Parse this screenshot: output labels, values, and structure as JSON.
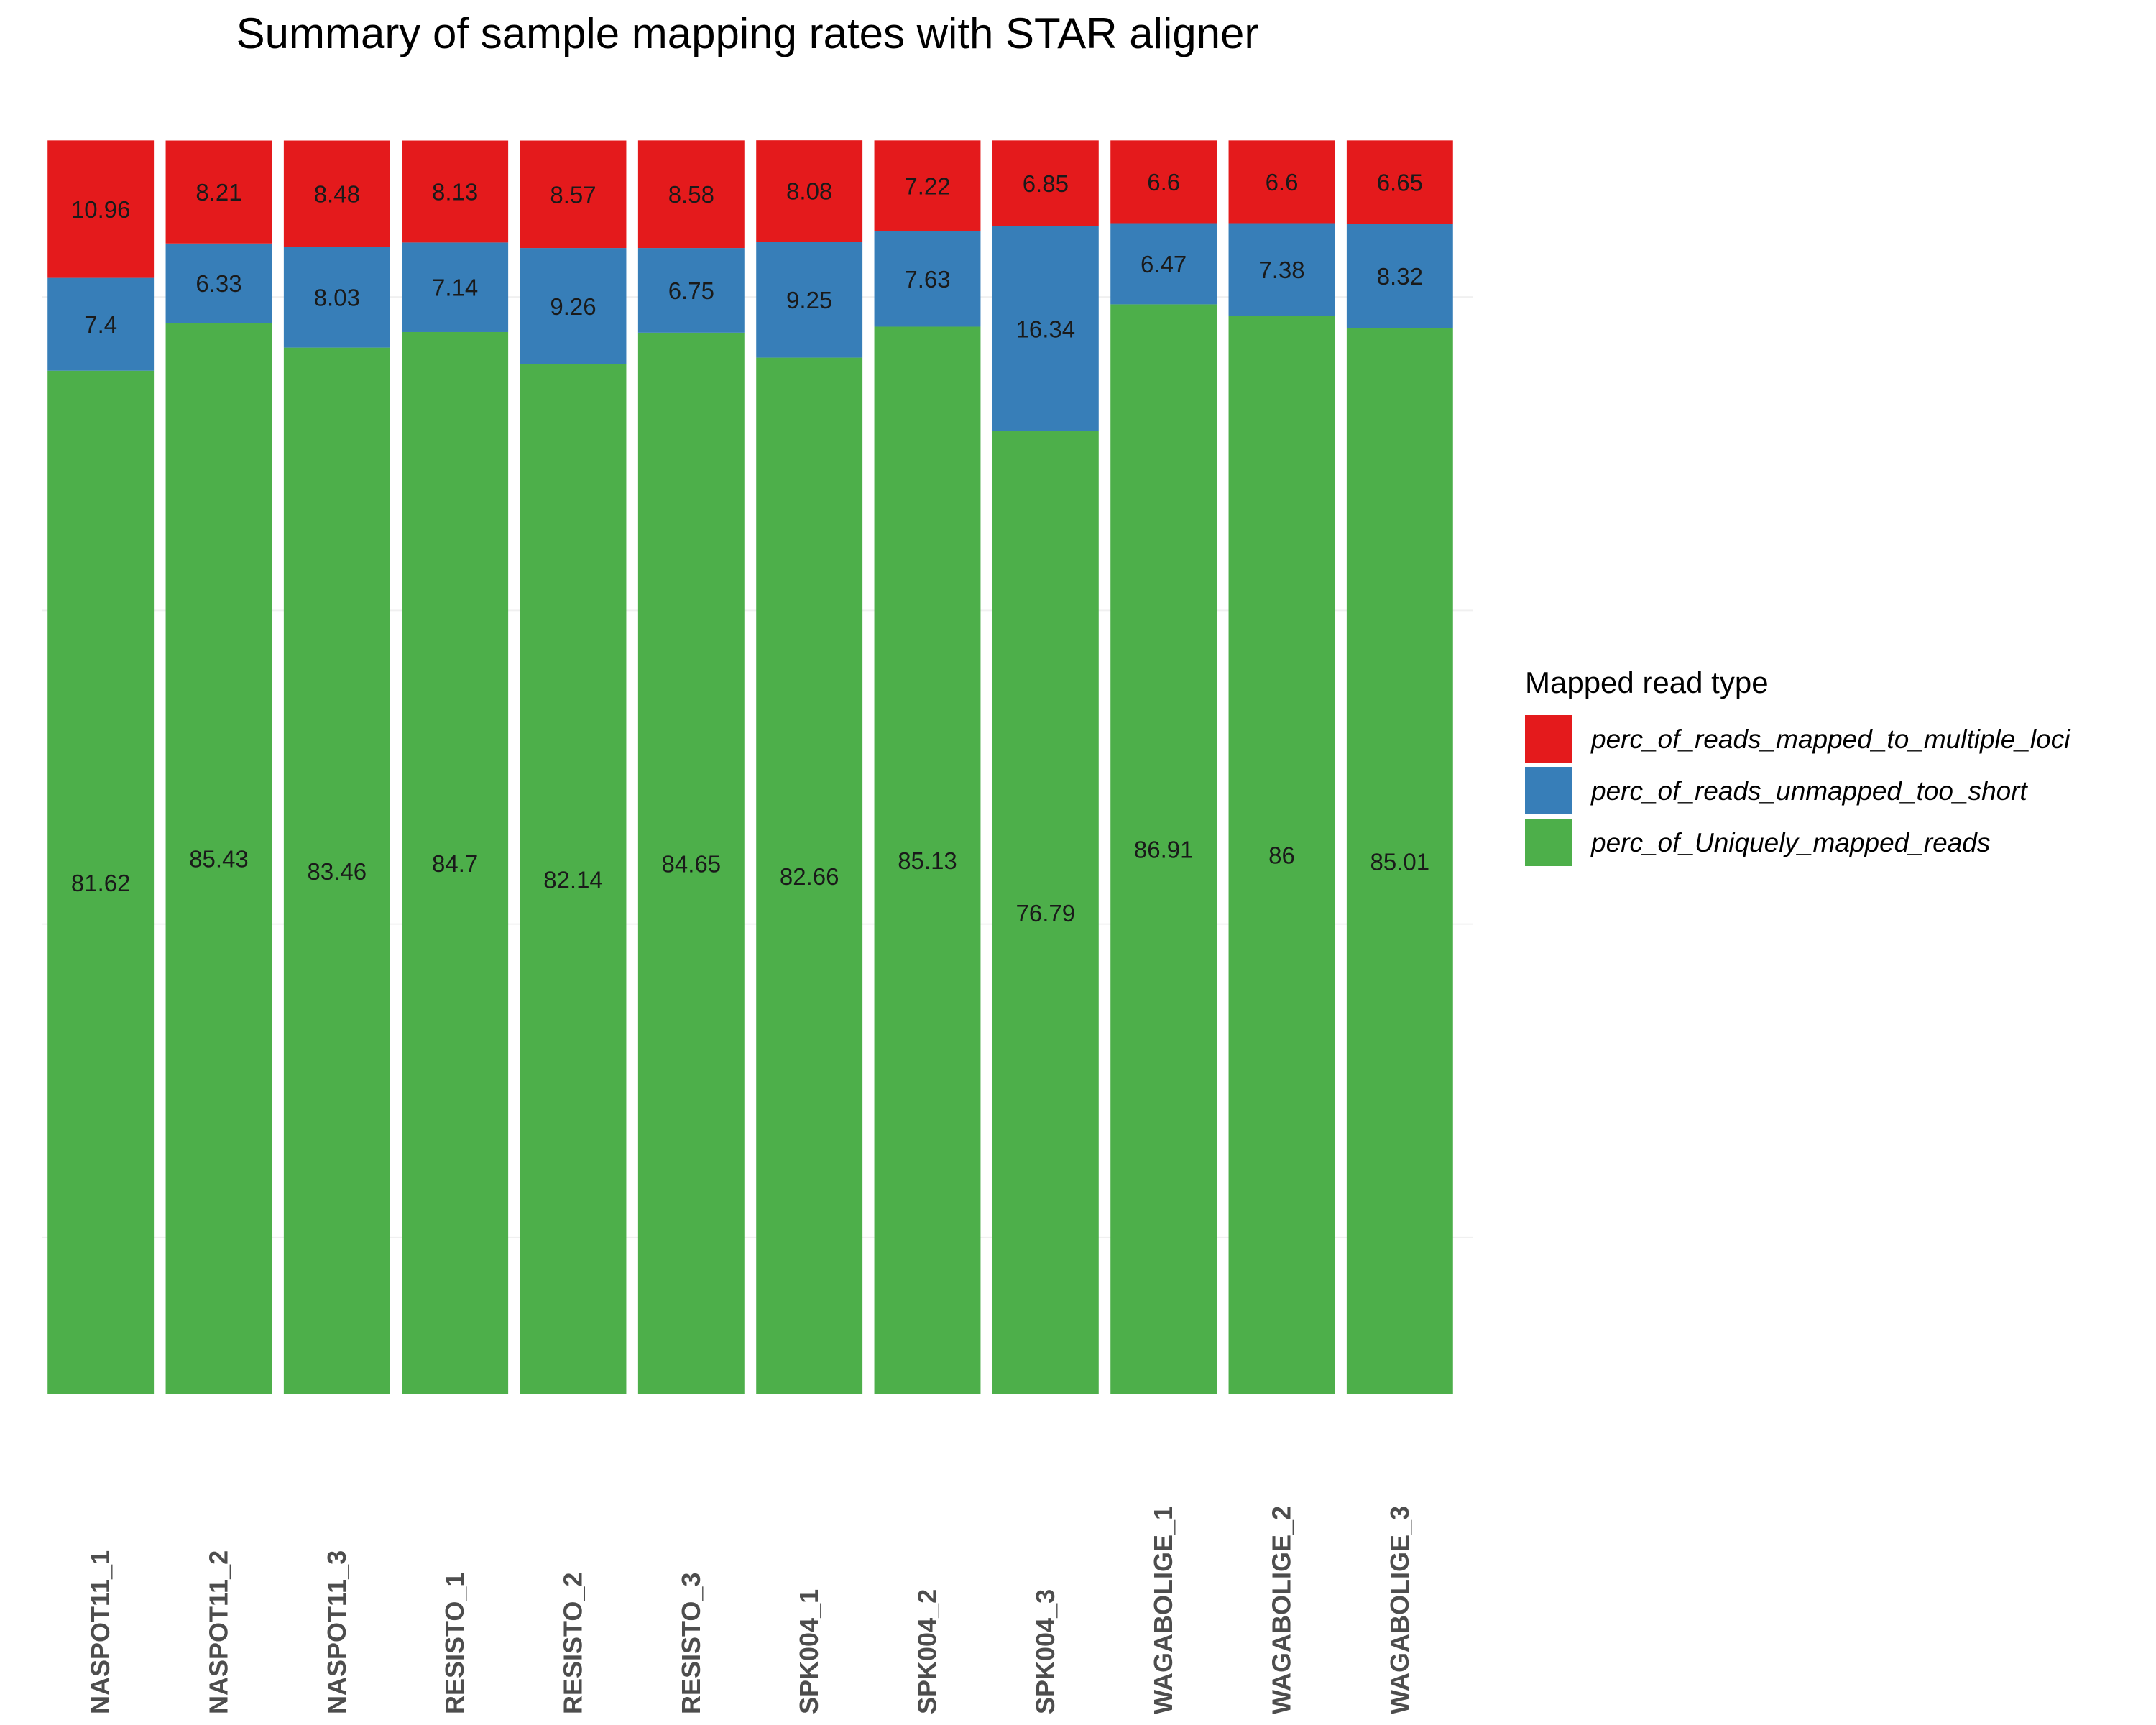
{
  "chart_data": {
    "type": "bar",
    "stacked": true,
    "title": "Summary of sample mapping rates with STAR aligner",
    "xlabel": "",
    "ylabel": "",
    "ylim": [
      0,
      100
    ],
    "grid": true,
    "legend": {
      "title": "Mapped read type",
      "position": "right"
    },
    "categories": [
      "NASPOT11_1",
      "NASPOT11_2",
      "NASPOT11_3",
      "RESISTO_1",
      "RESISTO_2",
      "RESISTO_3",
      "SPK004_1",
      "SPK004_2",
      "SPK004_3",
      "WAGABOLIGE_1",
      "WAGABOLIGE_2",
      "WAGABOLIGE_3"
    ],
    "series": [
      {
        "name": "perc_of_Uniquely_mapped_reads",
        "color": "#4daf4a",
        "values": [
          81.62,
          85.43,
          83.46,
          84.7,
          82.14,
          84.65,
          82.66,
          85.13,
          76.79,
          86.91,
          86,
          85.01
        ]
      },
      {
        "name": "perc_of_reads_unmapped_too_short",
        "color": "#377eb8",
        "values": [
          7.4,
          6.33,
          8.03,
          7.14,
          9.26,
          6.75,
          9.25,
          7.63,
          16.34,
          6.47,
          7.38,
          8.32
        ]
      },
      {
        "name": "perc_of_reads_mapped_to_multiple_loci",
        "color": "#e41a1c",
        "values": [
          10.96,
          8.21,
          8.48,
          8.13,
          8.57,
          8.58,
          8.08,
          7.22,
          6.85,
          6.6,
          6.6,
          6.65
        ]
      }
    ],
    "legend_order": [
      "perc_of_reads_mapped_to_multiple_loci",
      "perc_of_reads_unmapped_too_short",
      "perc_of_Uniquely_mapped_reads"
    ],
    "grid_values": [
      12.5,
      37.5,
      62.5,
      87.5
    ]
  }
}
